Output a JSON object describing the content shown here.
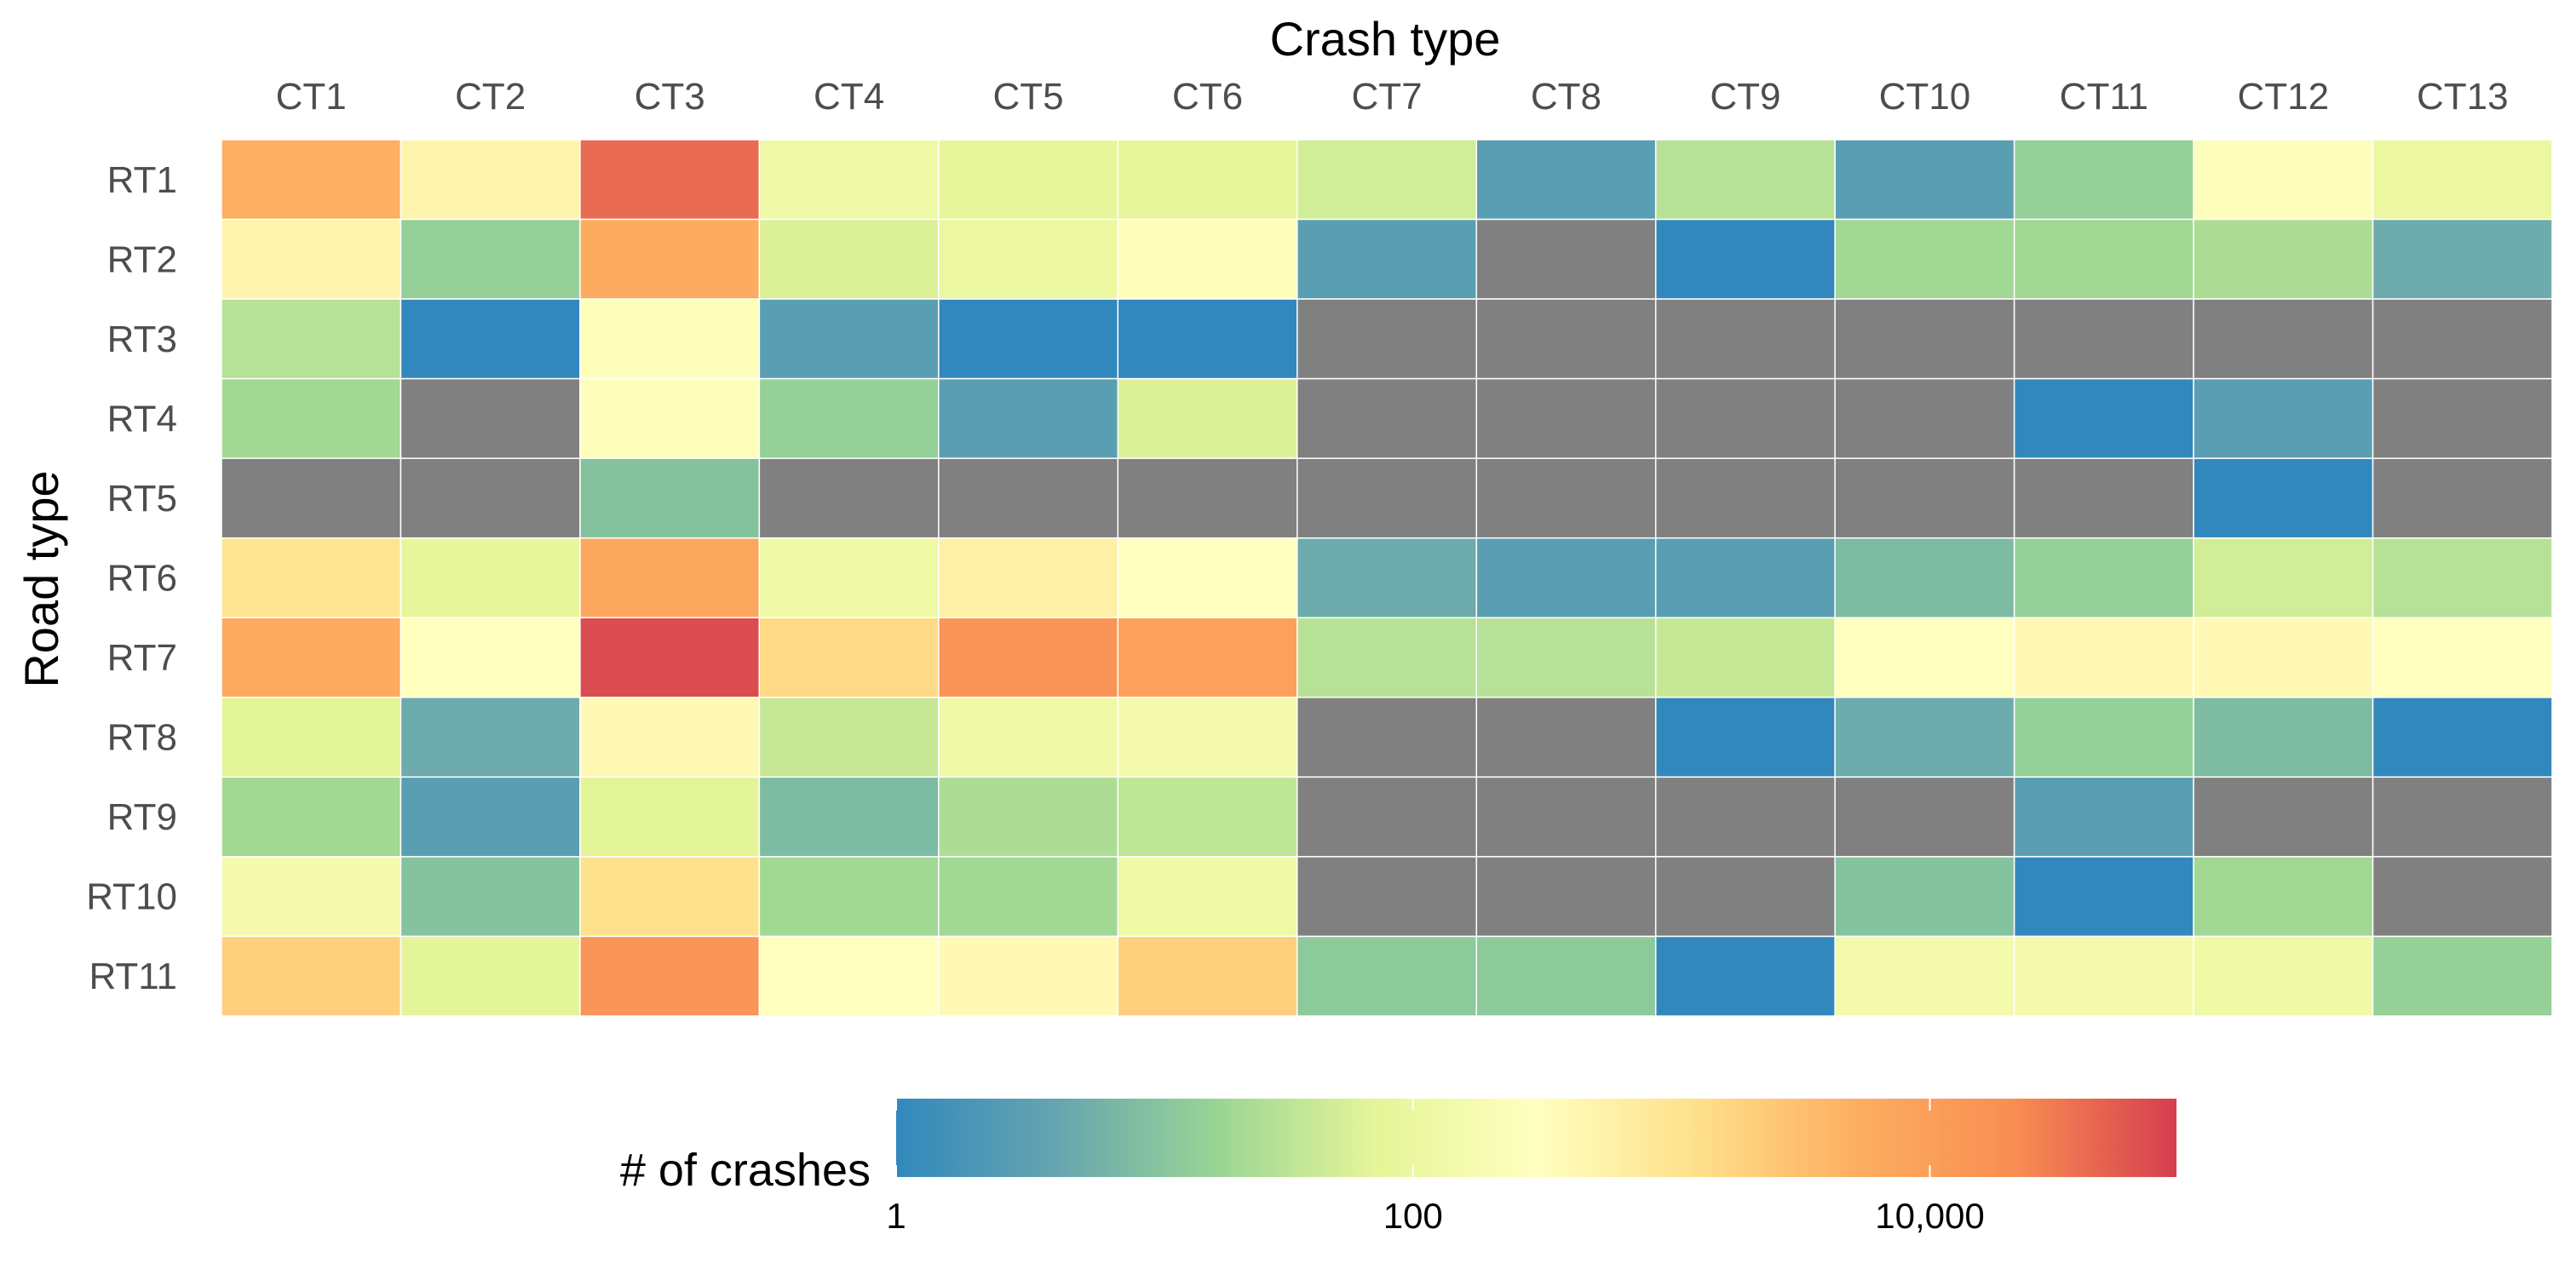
{
  "chart_data": {
    "type": "heatmap",
    "title": "",
    "x_title": "Crash type",
    "y_title": "Road type",
    "x_categories": [
      "CT1",
      "CT2",
      "CT3",
      "CT4",
      "CT5",
      "CT6",
      "CT7",
      "CT8",
      "CT9",
      "CT10",
      "CT11",
      "CT12",
      "CT13"
    ],
    "y_categories": [
      "RT1",
      "RT2",
      "RT3",
      "RT4",
      "RT5",
      "RT6",
      "RT7",
      "RT8",
      "RT9",
      "RT10",
      "RT11"
    ],
    "color_scale": {
      "type": "log10",
      "domain": [
        1,
        90000
      ],
      "stops": [
        "#3288bd",
        "#66a5b0",
        "#99d594",
        "#e6f598",
        "#ffffbf",
        "#fee08b",
        "#fdae61",
        "#f88d52",
        "#d53e4f"
      ],
      "missing_color": "#808080"
    },
    "legend": {
      "title": "# of crashes",
      "position": "bottom",
      "ticks": [
        {
          "value": 1,
          "label": "1"
        },
        {
          "value": 100,
          "label": "100"
        },
        {
          "value": 10000,
          "label": "10,000"
        }
      ]
    },
    "values": [
      [
        5000,
        500,
        40000,
        130,
        80,
        80,
        50,
        3,
        30,
        3,
        15,
        250,
        100
      ],
      [
        500,
        15,
        6000,
        60,
        100,
        250,
        3,
        null,
        1,
        20,
        20,
        25,
        5
      ],
      [
        30,
        1,
        250,
        3,
        1,
        1,
        null,
        null,
        null,
        null,
        null,
        null,
        null
      ],
      [
        20,
        null,
        250,
        15,
        3,
        60,
        null,
        null,
        null,
        null,
        1,
        3,
        null
      ],
      [
        null,
        null,
        10,
        null,
        null,
        null,
        null,
        null,
        null,
        null,
        null,
        1,
        null
      ],
      [
        1000,
        80,
        7000,
        120,
        600,
        300,
        5,
        3,
        3,
        8,
        15,
        50,
        30
      ],
      [
        6000,
        300,
        70000,
        1500,
        15000,
        9000,
        30,
        30,
        40,
        300,
        400,
        400,
        300
      ],
      [
        70,
        5,
        400,
        40,
        120,
        150,
        null,
        null,
        1,
        5,
        15,
        8,
        1
      ],
      [
        20,
        3,
        70,
        8,
        25,
        35,
        null,
        null,
        null,
        null,
        3,
        null,
        null
      ],
      [
        150,
        10,
        1200,
        20,
        20,
        120,
        null,
        null,
        null,
        10,
        1,
        20,
        null
      ],
      [
        2000,
        70,
        15000,
        300,
        400,
        2000,
        12,
        12,
        1,
        150,
        150,
        120,
        15
      ]
    ]
  }
}
